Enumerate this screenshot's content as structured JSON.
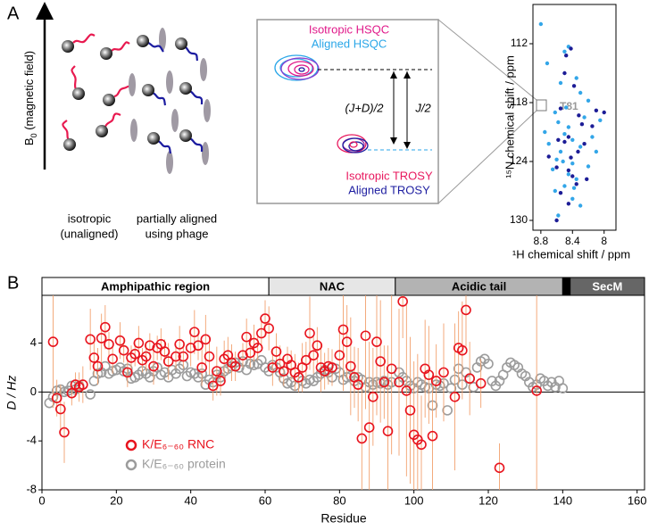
{
  "panel_a": {
    "label": "A",
    "b0": "B",
    "b0_sub": "0",
    "b0_rest": " (magnetic field)",
    "isotropic": [
      "isotropic",
      "(unaligned)"
    ],
    "aligned": [
      "partially aligned",
      "using phage"
    ],
    "inset": {
      "iso_hsqc": "Isotropic HSQC",
      "al_hsqc": "Aligned HSQC",
      "jd": "(J+D)/2",
      "j": "J/2",
      "iso_trosy": "Isotropic TROSY",
      "al_trosy": "Aligned TROSY"
    }
  },
  "panel_b": {
    "label": "B"
  },
  "chart_data": [
    {
      "type": "scatter",
      "x_label": "¹H chemical shift / ppm",
      "y_label": "¹⁵N chemical shift / ppm",
      "annotation": "T81",
      "xlim": [
        8.9,
        7.85
      ],
      "xticks": [
        8.8,
        8.4,
        8.0
      ],
      "ylim": [
        108,
        131
      ],
      "yticks": [
        112,
        118,
        124,
        130
      ],
      "grid": false,
      "series": [
        {
          "color": "#33a6e8",
          "x": [
            8.45,
            8.5,
            8.35,
            8.55,
            8.3,
            8.2,
            8.62,
            8.45,
            8.5,
            8.4,
            8.7,
            8.3,
            8.55,
            8.6,
            8.4,
            8.2,
            8.65,
            8.45,
            8.35,
            8.75,
            8.15,
            8.05,
            8.5,
            8.62,
            8.4,
            8.3,
            8.58,
            8.8,
            8.72,
            8.25,
            8.48,
            8.58,
            8.1,
            8.38,
            8.52
          ],
          "values": [
            112.3,
            112.8,
            115.5,
            116,
            117,
            117.8,
            119,
            120.5,
            121.2,
            121.8,
            122.2,
            122.5,
            123,
            123.8,
            124.2,
            124.5,
            124.8,
            125.3,
            125.8,
            121,
            121.5,
            119.8,
            126.5,
            127,
            127.8,
            128.5,
            129.5,
            110,
            114,
            119.5,
            118.5,
            120,
            123,
            126.7,
            124
          ]
        },
        {
          "color": "#1c1c96",
          "x": [
            8.42,
            8.48,
            8.38,
            8.55,
            8.28,
            8.45,
            8.5,
            8.33,
            8.6,
            8.45,
            8.4,
            8.25,
            8.0,
            8.15,
            8.55,
            8.45,
            8.6,
            8.35,
            8.7,
            8.5,
            8.32,
            8.58,
            8.42,
            8.22,
            8.1
          ],
          "values": [
            112.5,
            113.2,
            116.3,
            118.6,
            120.2,
            121.5,
            122,
            123,
            124.6,
            124.9,
            125.5,
            122.2,
            119,
            120.4,
            127.2,
            128.3,
            130,
            126.3,
            123.5,
            115,
            119.3,
            121.8,
            123.6,
            125.8,
            118.8
          ]
        }
      ]
    },
    {
      "type": "scatter",
      "x_label": "Residue",
      "y_label": "D / Hz",
      "xlim": [
        0,
        162
      ],
      "xticks": [
        0,
        20,
        40,
        60,
        80,
        100,
        120,
        140,
        160
      ],
      "ylim": [
        -8,
        7.9
      ],
      "yticks": [
        -8,
        -4,
        0,
        4
      ],
      "grid": false,
      "legend": "lower left",
      "regions": [
        {
          "name": "Amphipathic region",
          "start": 0,
          "end": 61,
          "color": "#ffffff",
          "label_color": "#000000"
        },
        {
          "name": "NAC",
          "start": 61,
          "end": 95,
          "color": "#e6e6e6",
          "label_color": "#000000"
        },
        {
          "name": "Acidic tail",
          "start": 95,
          "end": 140,
          "color": "#b3b3b3",
          "label_color": "#000000"
        },
        {
          "name": null,
          "start": 140,
          "end": 142,
          "color": "#000000",
          "label_color": "#000000"
        },
        {
          "name": "SecM",
          "start": 142,
          "end": 162,
          "color": "#666666",
          "label_color": "#ffffff"
        }
      ],
      "series": [
        {
          "name": "K/E₆₋₆₀ protein",
          "color": "#9c9c9c",
          "x": [
            2,
            3,
            4,
            5,
            6,
            7,
            8,
            9,
            10,
            13,
            14,
            15,
            16,
            17,
            18,
            19,
            20,
            21,
            22,
            23,
            24,
            25,
            26,
            27,
            28,
            29,
            30,
            31,
            32,
            33,
            34,
            35,
            36,
            37,
            38,
            39,
            40,
            41,
            42,
            43,
            44,
            45,
            46,
            47,
            48,
            49,
            50,
            51,
            52,
            53,
            54,
            55,
            56,
            57,
            58,
            59,
            60,
            61,
            62,
            63,
            64,
            65,
            66,
            67,
            68,
            69,
            70,
            71,
            72,
            73,
            74,
            75,
            76,
            77,
            78,
            79,
            80,
            81,
            82,
            83,
            84,
            85,
            86,
            87,
            88,
            89,
            90,
            91,
            92,
            93,
            94,
            96,
            97,
            98,
            99,
            100,
            101,
            102,
            103,
            104,
            105,
            106,
            107,
            108,
            109,
            110,
            111,
            112,
            113,
            114,
            115,
            116,
            117,
            118,
            119,
            120,
            121,
            122,
            123,
            124,
            125,
            126,
            127,
            128,
            129,
            130,
            131,
            132,
            133,
            134,
            135,
            136,
            137,
            138,
            139,
            140
          ],
          "values": [
            -0.9,
            -0.4,
            0.1,
            0.2,
            0.0,
            0.1,
            0.5,
            0.2,
            0.5,
            -0.2,
            0.9,
            1.5,
            1.6,
            2.1,
            1.5,
            1.7,
            1.8,
            2.0,
            1.7,
            1.9,
            1.1,
            1.2,
            1.4,
            1.7,
            1.5,
            1.2,
            1.7,
            2.0,
            1.4,
            1.6,
            1.2,
            1.8,
            1.5,
            1.9,
            2.2,
            1.3,
            1.6,
            1.5,
            1.2,
            1.5,
            0.6,
            1.0,
            0.8,
            1.4,
            1.2,
            1.7,
            1.9,
            2.1,
            2.4,
            2.0,
            2.5,
            1.8,
            2.3,
            2.2,
            2.3,
            2.6,
            2.0,
            1.7,
            2.2,
            2.0,
            1.6,
            1.1,
            0.7,
            0.8,
            0.5,
            1.2,
            0.9,
            0.7,
            1.0,
            0.9,
            1.2,
            1.5,
            1.8,
            1.6,
            1.2,
            1.9,
            1.6,
            1.0,
            1.2,
            1.3,
            0.9,
            1.2,
            1.0,
            0.4,
            0.8,
            0.6,
            0.8,
            0.7,
            0.9,
            0.6,
            0.8,
            1.6,
            1.2,
            0.9,
            0.5,
            0.3,
            0.8,
            0.6,
            0.4,
            0.3,
            -1.1,
            0.6,
            0.5,
            0.7,
            -1.5,
            0.3,
            1.0,
            1.9,
            0.6,
            1.6,
            1.1,
            0.4,
            2.0,
            2.5,
            2.7,
            2.3,
            0.9,
            0.5,
            0.9,
            1.4,
            2.0,
            2.4,
            2.2,
            2.0,
            1.5,
            1.3,
            0.8,
            0.4,
            0.6,
            1.1,
            0.9,
            0.5,
            0.8,
            0.4,
            0.9,
            0.3
          ]
        },
        {
          "name": "K/E₆₋₆₀ RNC",
          "color": "#e8141e",
          "error_color": "#f2a16e",
          "x": [
            3,
            4,
            5,
            6,
            8,
            9,
            10,
            11,
            13,
            14,
            15,
            16,
            17,
            18,
            19,
            21,
            22,
            23,
            24,
            25,
            26,
            27,
            28,
            29,
            30,
            31,
            32,
            33,
            34,
            36,
            37,
            38,
            40,
            41,
            42,
            43,
            44,
            45,
            46,
            47,
            48,
            49,
            50,
            51,
            52,
            54,
            55,
            56,
            57,
            58,
            59,
            60,
            61,
            62,
            63,
            64,
            65,
            66,
            67,
            68,
            69,
            70,
            71,
            72,
            73,
            74,
            75,
            76,
            77,
            78,
            80,
            81,
            82,
            83,
            84,
            85,
            86,
            87,
            88,
            89,
            90,
            91,
            92,
            93,
            94,
            96,
            97,
            98,
            99,
            100,
            101,
            102,
            103,
            104,
            105,
            106,
            108,
            111,
            112,
            113,
            114,
            115,
            118,
            123,
            133
          ],
          "values": [
            4.1,
            -0.5,
            -1.4,
            -3.3,
            -0.1,
            0.6,
            0.4,
            0.6,
            4.3,
            2.8,
            2.1,
            4.4,
            5.3,
            3.9,
            2.7,
            4.2,
            3.4,
            1.6,
            2.8,
            3.1,
            4.0,
            2.6,
            2.9,
            3.8,
            2.1,
            3.6,
            3.9,
            3.3,
            2.5,
            2.9,
            3.9,
            2.9,
            3.6,
            4.9,
            3.8,
            2.0,
            4.3,
            2.9,
            0.5,
            1.7,
            0.9,
            2.7,
            3.0,
            2.4,
            2.1,
            3.0,
            4.5,
            3.2,
            4.0,
            3.6,
            4.8,
            6.0,
            5.2,
            2.0,
            3.3,
            2.3,
            1.7,
            2.7,
            2.2,
            1.6,
            1.2,
            2.0,
            2.6,
            4.8,
            3.0,
            3.8,
            2.0,
            1.7,
            2.1,
            2.0,
            3.0,
            5.1,
            4.1,
            2.1,
            1.2,
            0.6,
            -3.8,
            4.6,
            -2.9,
            -0.4,
            4.1,
            2.5,
            0.8,
            -3.2,
            1.9,
            0.8,
            7.4,
            0.1,
            -1.5,
            -3.5,
            -3.9,
            -4.3,
            1.9,
            1.4,
            -3.6,
            0.9,
            1.6,
            -0.4,
            3.6,
            3.4,
            6.7,
            1.1,
            0.7,
            -6.2,
            0.1
          ],
          "errors": [
            5.4,
            1.5,
            2,
            2.5,
            1,
            1,
            1.2,
            1.5,
            2.5,
            1.5,
            1.5,
            2,
            1.8,
            1,
            1.2,
            1.5,
            1,
            1.2,
            1,
            1,
            1.4,
            1,
            1.2,
            1,
            1.5,
            1,
            1.3,
            1,
            1.5,
            1,
            1.5,
            1,
            1.5,
            1.8,
            1.2,
            1.5,
            2,
            1.5,
            1.2,
            2,
            1.2,
            1.5,
            1.5,
            1.5,
            1.2,
            1,
            1.5,
            1.2,
            1.5,
            1,
            1.2,
            1.5,
            1.8,
            1.5,
            1.5,
            1.5,
            1.2,
            1,
            1.2,
            1.5,
            1.2,
            2,
            1.5,
            3,
            1.5,
            1.5,
            2,
            1.5,
            1.5,
            1.5,
            2,
            5,
            3,
            4,
            2.5,
            3,
            5,
            6,
            7,
            4,
            6,
            5,
            3,
            7,
            7,
            6,
            3,
            7,
            6,
            6,
            7,
            4,
            4,
            4,
            5,
            3,
            4,
            6,
            3,
            4,
            3,
            3,
            2,
            2,
            12
          ]
        }
      ]
    }
  ]
}
